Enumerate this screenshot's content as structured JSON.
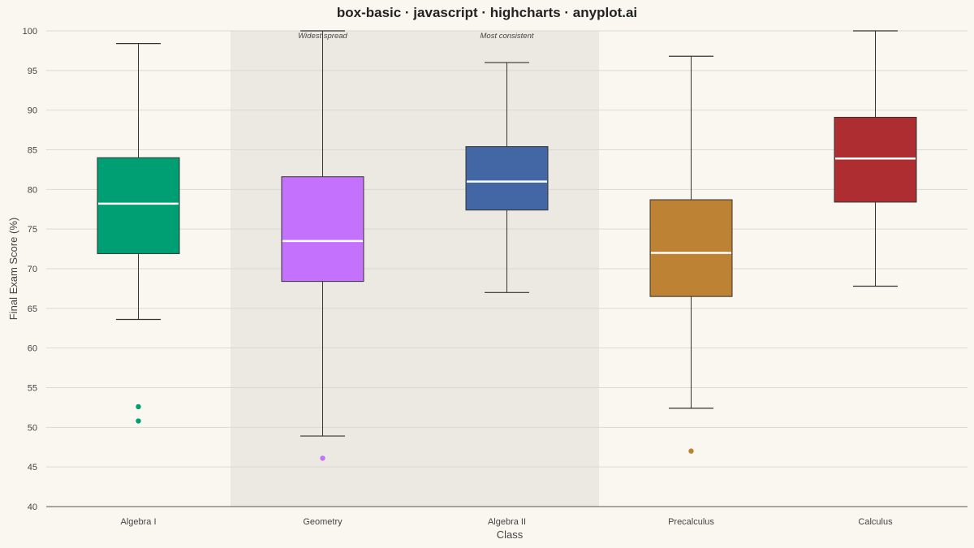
{
  "title": "box-basic · javascript · highcharts · anyplot.ai",
  "chart_data": {
    "type": "boxplot",
    "title": "box-basic · javascript · highcharts · anyplot.ai",
    "xlabel": "Class",
    "ylabel": "Final Exam Score (%)",
    "ylim": [
      40,
      100
    ],
    "y_ticks": [
      40,
      45,
      50,
      55,
      60,
      65,
      70,
      75,
      80,
      85,
      90,
      95,
      100
    ],
    "grid": true,
    "categories": [
      "Algebra I",
      "Geometry",
      "Algebra II",
      "Precalculus",
      "Calculus"
    ],
    "boxes": [
      {
        "category": "Algebra I",
        "low": 63.6,
        "q1": 71.9,
        "median": 78.2,
        "q3": 84.0,
        "high": 98.4,
        "outliers": [
          52.6,
          50.8
        ],
        "color": "#009e73"
      },
      {
        "category": "Geometry",
        "low": 48.9,
        "q1": 68.4,
        "median": 73.5,
        "q3": 81.6,
        "high": 100.0,
        "outliers": [
          46.1
        ],
        "color": "#c471fd"
      },
      {
        "category": "Algebra II",
        "low": 67.0,
        "q1": 77.4,
        "median": 81.0,
        "q3": 85.4,
        "high": 96.0,
        "outliers": [],
        "color": "#4366a5"
      },
      {
        "category": "Precalculus",
        "low": 52.4,
        "q1": 66.5,
        "median": 72.0,
        "q3": 78.7,
        "high": 96.8,
        "outliers": [
          47.0
        ],
        "color": "#bd8233"
      },
      {
        "category": "Calculus",
        "low": 67.8,
        "q1": 78.4,
        "median": 83.9,
        "q3": 89.1,
        "high": 100.0,
        "outliers": [],
        "color": "#ae2d31"
      }
    ],
    "highlight_band": {
      "from_category": 1,
      "to_category": 2,
      "color": "#ece9e2"
    },
    "annotations": [
      {
        "category": "Geometry",
        "text": "Widest spread"
      },
      {
        "category": "Algebra II",
        "text": "Most consistent"
      }
    ]
  }
}
